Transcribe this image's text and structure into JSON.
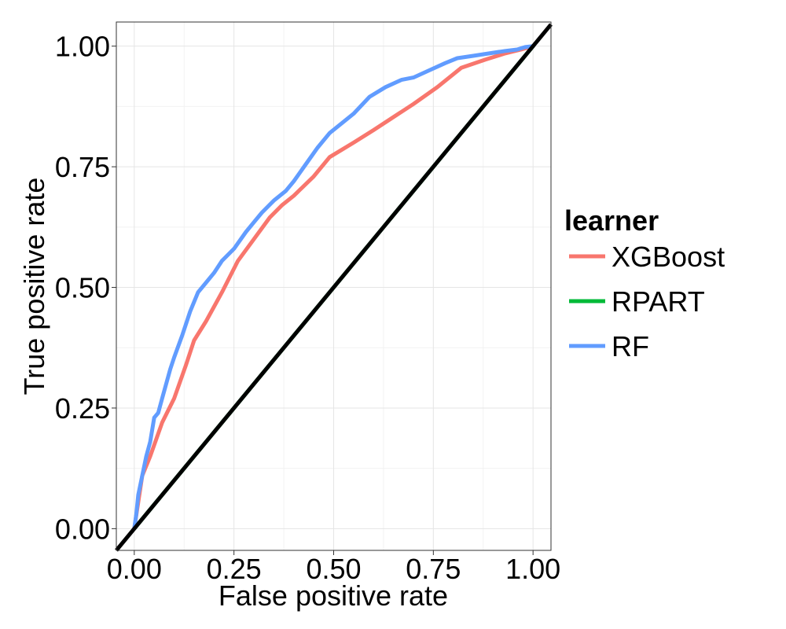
{
  "chart_data": {
    "type": "line",
    "title": "",
    "xlabel": "False positive rate",
    "ylabel": "True positive rate",
    "xlim": [
      -0.045,
      1.045
    ],
    "ylim": [
      -0.045,
      1.05
    ],
    "x_ticks": [
      "0.00",
      "0.25",
      "0.50",
      "0.75",
      "1.00"
    ],
    "y_ticks": [
      "0.00",
      "0.25",
      "0.50",
      "0.75",
      "1.00"
    ],
    "x_tick_values": [
      0,
      0.25,
      0.5,
      0.75,
      1.0
    ],
    "y_tick_values": [
      0,
      0.25,
      0.5,
      0.75,
      1.0
    ],
    "grid": true,
    "legend": {
      "title": "learner",
      "position": "right"
    },
    "reference_line": {
      "from": [
        -0.045,
        -0.045
      ],
      "to": [
        1.045,
        1.045
      ],
      "color": "#000000"
    },
    "series": [
      {
        "name": "XGBoost",
        "color": "#F8766D",
        "x": [
          0,
          0.02,
          0.04,
          0.07,
          0.1,
          0.13,
          0.15,
          0.18,
          0.22,
          0.26,
          0.3,
          0.34,
          0.37,
          0.4,
          0.45,
          0.49,
          0.55,
          0.6,
          0.65,
          0.7,
          0.76,
          0.82,
          0.88,
          0.93,
          0.97,
          1.0
        ],
        "y": [
          0,
          0.11,
          0.15,
          0.22,
          0.27,
          0.34,
          0.39,
          0.43,
          0.49,
          0.555,
          0.6,
          0.645,
          0.67,
          0.69,
          0.73,
          0.77,
          0.8,
          0.826,
          0.853,
          0.88,
          0.915,
          0.955,
          0.972,
          0.985,
          0.993,
          1.0
        ]
      },
      {
        "name": "RPART",
        "color": "#00BA38",
        "x": [
          0,
          1.0
        ],
        "y": [
          0,
          1.0
        ]
      },
      {
        "name": "RF",
        "color": "#619CFF",
        "x": [
          0,
          0.005,
          0.01,
          0.02,
          0.03,
          0.04,
          0.05,
          0.06,
          0.07,
          0.08,
          0.09,
          0.1,
          0.12,
          0.14,
          0.16,
          0.18,
          0.2,
          0.22,
          0.25,
          0.28,
          0.3,
          0.32,
          0.35,
          0.38,
          0.4,
          0.43,
          0.46,
          0.49,
          0.52,
          0.55,
          0.59,
          0.63,
          0.67,
          0.7,
          0.74,
          0.78,
          0.81,
          0.85,
          0.89,
          0.93,
          0.96,
          0.98,
          1.0
        ],
        "y": [
          0,
          0.03,
          0.07,
          0.11,
          0.15,
          0.18,
          0.23,
          0.24,
          0.27,
          0.3,
          0.33,
          0.355,
          0.4,
          0.45,
          0.49,
          0.51,
          0.53,
          0.555,
          0.58,
          0.615,
          0.635,
          0.655,
          0.68,
          0.7,
          0.72,
          0.755,
          0.79,
          0.82,
          0.84,
          0.86,
          0.895,
          0.915,
          0.93,
          0.935,
          0.95,
          0.965,
          0.975,
          0.98,
          0.985,
          0.99,
          0.993,
          0.998,
          1.0
        ]
      }
    ]
  }
}
